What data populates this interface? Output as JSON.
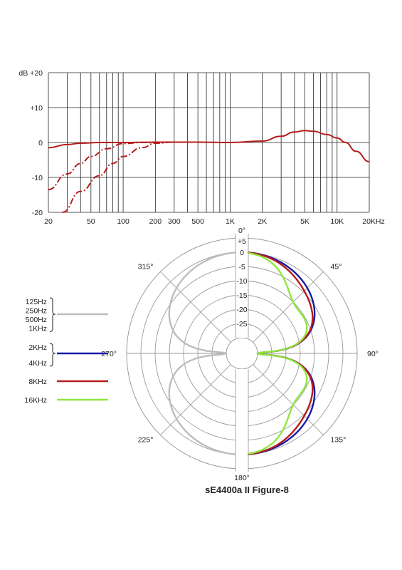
{
  "caption": "sE4400a II Figure-8",
  "colors": {
    "low": "#bdbdbd",
    "mid": "#1a1aa6",
    "high": "#b51c1c",
    "top": "#8fe640",
    "grid": "#222222",
    "ring": "#9a9a9a"
  },
  "chart_data": [
    {
      "type": "line",
      "title": "",
      "xlabel": "",
      "ylabel": "",
      "xscale": "log",
      "xlim": [
        20,
        20000
      ],
      "ylim": [
        -20,
        20
      ],
      "x_tick_labels": [
        "20",
        "50",
        "100",
        "200",
        "300",
        "500",
        "1K",
        "2K",
        "5K",
        "10K",
        "20KHz"
      ],
      "x_tick_values": [
        20,
        50,
        100,
        200,
        300,
        500,
        1000,
        2000,
        5000,
        10000,
        20000
      ],
      "y_tick_labels": [
        "dB +20",
        "+10",
        "0",
        "-10",
        "-20"
      ],
      "y_tick_values": [
        20,
        10,
        0,
        -10,
        -20
      ],
      "grid": true,
      "series": [
        {
          "style": "solid",
          "color": "#b51c1c",
          "points": [
            [
              20,
              -1.5
            ],
            [
              30,
              -0.6
            ],
            [
              40,
              -0.2
            ],
            [
              60,
              0
            ],
            [
              100,
              0
            ],
            [
              200,
              0.1
            ],
            [
              500,
              0.1
            ],
            [
              1000,
              0
            ],
            [
              2000,
              0.4
            ],
            [
              3000,
              1.8
            ],
            [
              4000,
              3.0
            ],
            [
              5000,
              3.4
            ],
            [
              6000,
              3.2
            ],
            [
              8000,
              2.3
            ],
            [
              10000,
              1.3
            ],
            [
              12000,
              0
            ],
            [
              15000,
              -2.5
            ],
            [
              20000,
              -5.5
            ]
          ]
        },
        {
          "style": "dashed",
          "color": "#b51c1c",
          "points": [
            [
              20,
              -13.5
            ],
            [
              30,
              -9.0
            ],
            [
              40,
              -6.0
            ],
            [
              50,
              -4.0
            ],
            [
              70,
              -1.8
            ],
            [
              100,
              -0.3
            ],
            [
              150,
              0
            ],
            [
              300,
              0.1
            ]
          ]
        },
        {
          "style": "dashed",
          "color": "#b51c1c",
          "points": [
            [
              27,
              -20
            ],
            [
              40,
              -14.0
            ],
            [
              60,
              -9.5
            ],
            [
              80,
              -6.0
            ],
            [
              100,
              -4.0
            ],
            [
              150,
              -1.5
            ],
            [
              200,
              -0.2
            ],
            [
              300,
              0.1
            ]
          ]
        }
      ]
    },
    {
      "type": "polar",
      "title": "",
      "angle_labels": [
        "0°",
        "45°",
        "90°",
        "135°",
        "180°",
        "225°",
        "270°",
        "315°"
      ],
      "angle_values": [
        0,
        45,
        90,
        135,
        180,
        225,
        270,
        315
      ],
      "radial_labels": [
        "+5",
        "0",
        "-5",
        "-10",
        "-15",
        "-20",
        "-25"
      ],
      "radial_values": [
        5,
        0,
        -5,
        -10,
        -15,
        -20,
        -25
      ],
      "rlim": [
        -30,
        5
      ],
      "legend": [
        {
          "labels": [
            "125Hz",
            "250Hz",
            "500Hz",
            "1KHz"
          ],
          "color": "#bdbdbd"
        },
        {
          "labels": [
            "2KHz",
            "4KHz"
          ],
          "color": "#1a1aa6"
        },
        {
          "labels": [
            "8KHz"
          ],
          "color": "#b51c1c"
        },
        {
          "labels": [
            "16KHz"
          ],
          "color": "#8fe640"
        }
      ],
      "series": [
        {
          "name": "125Hz 250Hz 500Hz 1KHz",
          "color": "#bdbdbd",
          "side": "left",
          "pattern": "figure-8",
          "front_db": 0,
          "null_db": -30
        },
        {
          "name": "2KHz 4KHz",
          "color": "#1a1aa6",
          "side": "right",
          "pattern": "figure-8",
          "front_db": 0,
          "null_db": -30
        },
        {
          "name": "8KHz",
          "color": "#b51c1c",
          "side": "right",
          "pattern": "figure-8",
          "front_db": 0,
          "null_db": -30,
          "bulge_db": -1.5
        },
        {
          "name": "16KHz",
          "color": "#8fe640",
          "side": "right",
          "pattern": "figure-8",
          "front_db": 0,
          "null_db": -30,
          "bulge_db": -7
        }
      ]
    }
  ]
}
